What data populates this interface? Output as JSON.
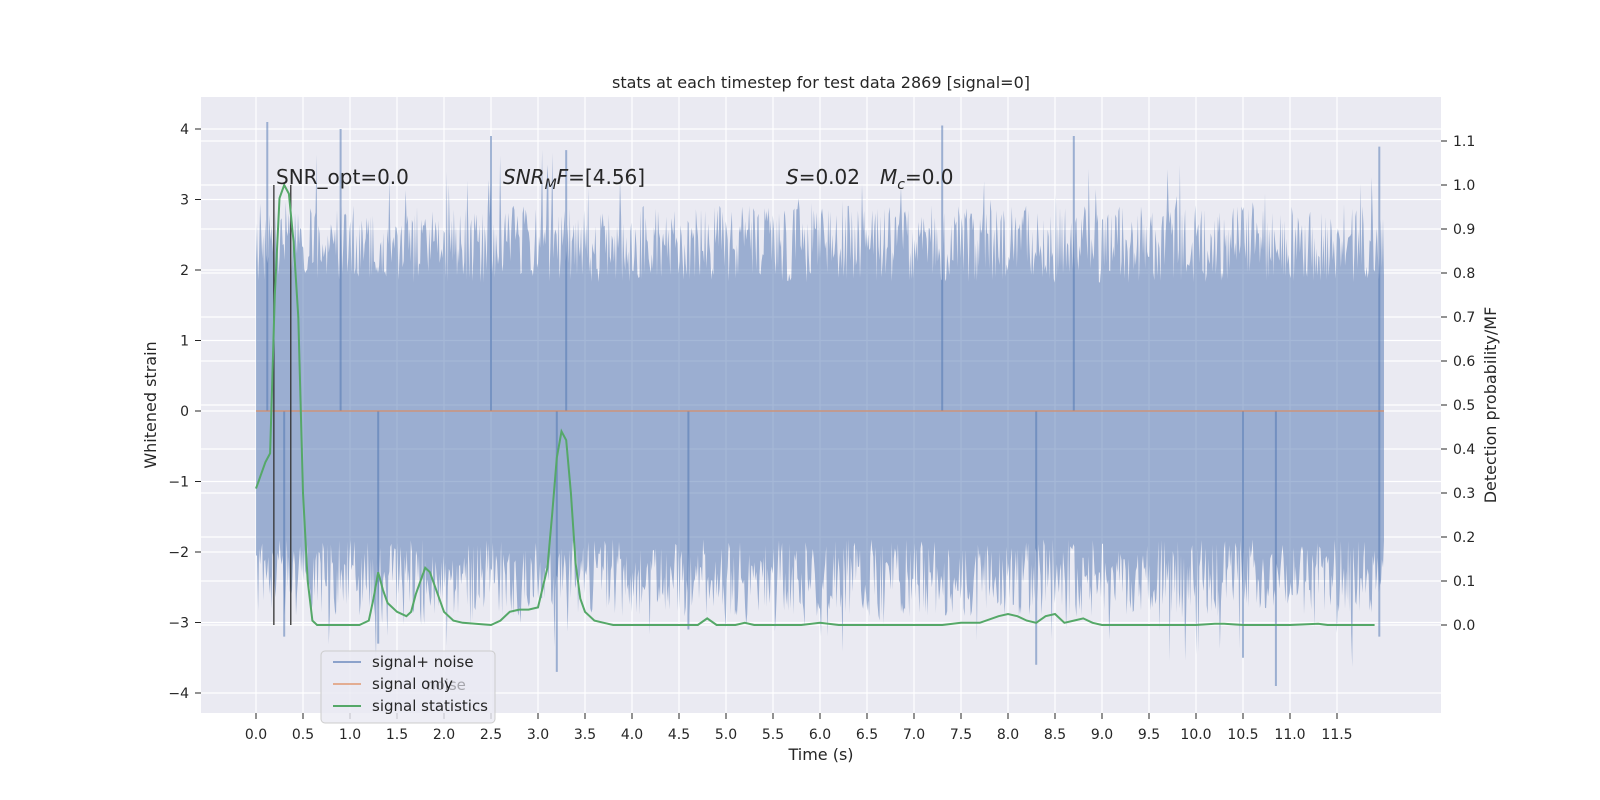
{
  "chart_data": {
    "type": "line",
    "title": "stats at each timestep for test data 2869 [signal=0]",
    "xlabel": "Time (s)",
    "ylabel": "Whitened strain",
    "y2label": "Detection probability/MF",
    "xlim": [
      -0.5,
      12.7
    ],
    "ylim": [
      -4.3,
      4.4
    ],
    "y2lim": [
      -0.2,
      1.2
    ],
    "x_ticks": [
      0.0,
      0.5,
      1.0,
      1.5,
      2.0,
      2.5,
      3.0,
      3.5,
      4.0,
      4.5,
      5.0,
      5.5,
      6.0,
      6.5,
      7.0,
      7.5,
      8.0,
      8.5,
      9.0,
      9.5,
      10.0,
      10.5,
      11.0,
      11.5
    ],
    "x_tick_labels": [
      "0.0",
      "0.5",
      "1.0",
      "1.5",
      "2.0",
      "2.5",
      "3.0",
      "3.5",
      "4.0",
      "4.5",
      "5.0",
      "5.5",
      "6.0",
      "6.5",
      "7.0",
      "7.5",
      "8.0",
      "8.5",
      "9.0",
      "9.5",
      "10.0",
      "10.5",
      "11.0",
      "11.5"
    ],
    "y_ticks": [
      -4,
      -3,
      -2,
      -1,
      0,
      1,
      2,
      3,
      4
    ],
    "y_tick_labels": [
      "−4",
      "−3",
      "−2",
      "−1",
      "0",
      "1",
      "2",
      "3",
      "4"
    ],
    "y2_ticks": [
      0.0,
      0.1,
      0.2,
      0.3,
      0.4,
      0.5,
      0.6,
      0.7,
      0.8,
      0.9,
      1.0,
      1.1
    ],
    "y2_tick_labels": [
      "0.0",
      "0.1",
      "0.2",
      "0.3",
      "0.4",
      "0.5",
      "0.6",
      "0.7",
      "0.8",
      "0.9",
      "1.0",
      "1.1"
    ],
    "grid": true,
    "legend_placement": "lower-left",
    "noise_envelope": {
      "x": [
        0.0,
        12.0
      ],
      "typical_upper": 2.2,
      "typical_lower": -2.2,
      "peak_upper": [
        [
          0.12,
          4.1
        ],
        [
          0.9,
          4.0
        ],
        [
          2.5,
          3.9
        ],
        [
          3.3,
          3.7
        ],
        [
          7.3,
          4.05
        ],
        [
          8.7,
          3.9
        ],
        [
          11.95,
          3.75
        ]
      ],
      "peak_lower": [
        [
          0.3,
          -3.2
        ],
        [
          1.3,
          -3.3
        ],
        [
          3.2,
          -3.7
        ],
        [
          4.6,
          -3.1
        ],
        [
          8.3,
          -3.6
        ],
        [
          10.5,
          -3.5
        ],
        [
          10.85,
          -3.9
        ],
        [
          11.95,
          -3.2
        ]
      ]
    },
    "series": [
      {
        "name": "signal+ noise",
        "color": "#4c72b0",
        "opacity": 0.5
      },
      {
        "name": "signal only",
        "color": "#dd8452",
        "x": [
          0.0,
          12.0
        ],
        "y": [
          0.0,
          0.0
        ]
      },
      {
        "name": "signal statistics",
        "color": "#55a868",
        "axis": "right",
        "x": [
          0.0,
          0.1,
          0.15,
          0.2,
          0.25,
          0.3,
          0.35,
          0.4,
          0.45,
          0.5,
          0.55,
          0.6,
          0.65,
          0.7,
          0.8,
          0.9,
          1.0,
          1.1,
          1.2,
          1.25,
          1.3,
          1.35,
          1.4,
          1.5,
          1.6,
          1.65,
          1.7,
          1.75,
          1.8,
          1.85,
          1.9,
          2.0,
          2.1,
          2.2,
          2.5,
          2.6,
          2.7,
          2.8,
          2.9,
          3.0,
          3.1,
          3.15,
          3.2,
          3.25,
          3.3,
          3.35,
          3.4,
          3.45,
          3.5,
          3.6,
          3.7,
          3.8,
          4.0,
          4.5,
          4.7,
          4.8,
          4.9,
          5.0,
          5.1,
          5.2,
          5.3,
          5.5,
          5.8,
          6.0,
          6.2,
          6.5,
          7.0,
          7.3,
          7.5,
          7.7,
          7.9,
          8.0,
          8.1,
          8.2,
          8.3,
          8.4,
          8.5,
          8.6,
          8.7,
          8.8,
          8.9,
          9.0,
          9.5,
          10.0,
          10.2,
          10.3,
          10.5,
          11.0,
          11.3,
          11.4,
          11.9
        ],
        "y": [
          0.31,
          0.37,
          0.39,
          0.75,
          0.97,
          1.0,
          0.98,
          0.87,
          0.7,
          0.3,
          0.1,
          0.01,
          0.0,
          0.0,
          0.0,
          0.0,
          0.0,
          0.0,
          0.01,
          0.06,
          0.12,
          0.08,
          0.05,
          0.03,
          0.02,
          0.03,
          0.07,
          0.1,
          0.13,
          0.12,
          0.09,
          0.03,
          0.01,
          0.005,
          0.0,
          0.01,
          0.03,
          0.035,
          0.035,
          0.04,
          0.13,
          0.25,
          0.38,
          0.44,
          0.42,
          0.3,
          0.14,
          0.06,
          0.03,
          0.01,
          0.005,
          0.0,
          0.0,
          0.0,
          0.0,
          0.015,
          0.0,
          0.0,
          0.0,
          0.005,
          0.0,
          0.0,
          0.0,
          0.005,
          0.0,
          0.0,
          0.0,
          0.0,
          0.005,
          0.005,
          0.02,
          0.025,
          0.02,
          0.01,
          0.005,
          0.02,
          0.025,
          0.005,
          0.01,
          0.015,
          0.005,
          0.0,
          0.0,
          0.0,
          0.003,
          0.003,
          0.0,
          0.0,
          0.003,
          0.0,
          0.0
        ]
      }
    ],
    "vertical_lines": [
      0.19,
      0.37
    ],
    "annotations": [
      {
        "parts": [
          {
            "text": "SNR_opt=0.0",
            "italic": false
          }
        ]
      },
      {
        "parts": [
          {
            "text": "SNR",
            "italic": true
          },
          {
            "text": "M",
            "italic": true,
            "sub": true
          },
          {
            "text": "F",
            "italic": true
          },
          {
            "text": "=[4.56]",
            "italic": false
          }
        ]
      },
      {
        "parts": [
          {
            "text": "S",
            "italic": true
          },
          {
            "text": "=0.02",
            "italic": false
          }
        ]
      },
      {
        "parts": [
          {
            "text": "M",
            "italic": true
          },
          {
            "text": "c",
            "italic": true,
            "sub": true
          },
          {
            "text": "=0.0",
            "italic": false
          }
        ]
      }
    ],
    "legend": [
      {
        "label": "signal+ noise",
        "color": "#4c72b0",
        "opacity": 0.6
      },
      {
        "label": "signal only",
        "color": "#dd8452",
        "opacity": 0.6
      },
      {
        "label": "signal statistics",
        "color": "#55a868",
        "opacity": 1.0
      }
    ],
    "legend_ghost_label": "noise"
  }
}
